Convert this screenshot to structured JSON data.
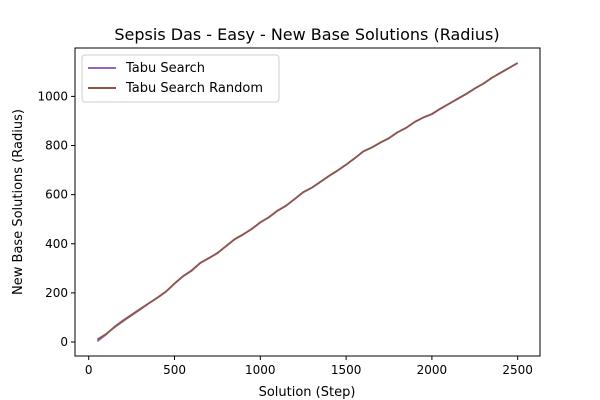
{
  "chart_data": {
    "type": "line",
    "title": "Sepsis Das - Easy - New Base Solutions (Radius)",
    "xlabel": "Solution (Step)",
    "ylabel": "New Base Solutions (Radius)",
    "xlim": [
      -80,
      2630
    ],
    "ylim": [
      -57,
      1197
    ],
    "xticks": [
      0,
      500,
      1000,
      1500,
      2000,
      2500
    ],
    "yticks": [
      0,
      200,
      400,
      600,
      800,
      1000
    ],
    "grid": false,
    "legend_position": "top-left",
    "series": [
      {
        "name": "Tabu Search",
        "color": "#9467bd",
        "x": [
          50,
          100,
          150,
          200,
          300,
          350,
          400,
          450,
          500,
          550,
          600,
          650,
          700,
          750,
          800,
          850,
          900,
          950,
          1000,
          1050,
          1100,
          1150,
          1200,
          1250,
          1300,
          1350,
          1400,
          1450,
          1500,
          1550,
          1600,
          1650,
          1700,
          1750,
          1800,
          1850,
          1900,
          1950,
          2000,
          2050,
          2100,
          2150,
          2200,
          2250,
          2300,
          2350,
          2400,
          2450,
          2500
        ],
        "y": [
          3,
          30,
          62,
          88,
          135,
          158,
          180,
          205,
          238,
          268,
          292,
          322,
          342,
          362,
          390,
          418,
          438,
          460,
          487,
          508,
          535,
          555,
          582,
          610,
          628,
          652,
          676,
          698,
          722,
          748,
          776,
          792,
          812,
          830,
          854,
          872,
          896,
          914,
          928,
          950,
          970,
          990,
          1010,
          1032,
          1052,
          1076,
          1096,
          1116,
          1136
        ]
      },
      {
        "name": "Tabu Search Random",
        "color": "#8c564b",
        "x": [
          50,
          100,
          150,
          200,
          300,
          350,
          400,
          450,
          500,
          550,
          600,
          650,
          700,
          750,
          800,
          850,
          900,
          950,
          1000,
          1050,
          1100,
          1150,
          1200,
          1250,
          1300,
          1350,
          1400,
          1450,
          1500,
          1550,
          1600,
          1650,
          1700,
          1750,
          1800,
          1850,
          1900,
          1950,
          2000,
          2050,
          2100,
          2150,
          2200,
          2250,
          2300,
          2350,
          2400,
          2450,
          2500
        ],
        "y": [
          10,
          32,
          60,
          85,
          133,
          157,
          180,
          205,
          238,
          268,
          290,
          322,
          341,
          362,
          390,
          418,
          438,
          460,
          487,
          508,
          534,
          555,
          582,
          610,
          628,
          652,
          676,
          698,
          722,
          748,
          776,
          792,
          812,
          830,
          854,
          872,
          896,
          914,
          928,
          950,
          970,
          990,
          1010,
          1032,
          1052,
          1076,
          1096,
          1116,
          1136
        ]
      }
    ]
  }
}
